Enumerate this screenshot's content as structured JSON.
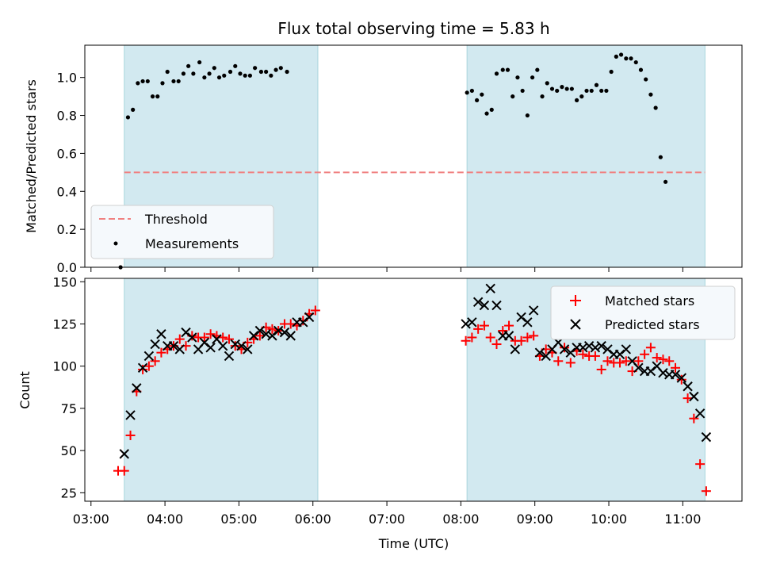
{
  "chart_data": [
    {
      "type": "scatter",
      "title": "Flux total observing time = 5.83 h",
      "xlabel": "",
      "ylabel": "Matched/Predicted stars",
      "ylim": [
        0,
        1.17
      ],
      "xlim": [
        "02:55",
        "11:48"
      ],
      "yticks": [
        "0.0",
        "0.2",
        "0.4",
        "0.6",
        "0.8",
        "1.0"
      ],
      "observing_windows": [
        [
          "03:27",
          "06:04"
        ],
        [
          "08:05",
          "11:18"
        ]
      ],
      "threshold": {
        "name": "Threshold",
        "y": 0.5,
        "color": "#f08080",
        "from": "03:27",
        "to": "11:18"
      },
      "legend_location": "lower-left",
      "series": [
        {
          "name": "Measurements",
          "color": "#000000",
          "points": [
            [
              "03:24",
              0.0
            ],
            [
              "03:30",
              0.79
            ],
            [
              "03:34",
              0.83
            ],
            [
              "03:38",
              0.97
            ],
            [
              "03:42",
              0.98
            ],
            [
              "03:46",
              0.98
            ],
            [
              "03:50",
              0.9
            ],
            [
              "03:54",
              0.9
            ],
            [
              "03:58",
              0.97
            ],
            [
              "04:02",
              1.03
            ],
            [
              "04:07",
              0.98
            ],
            [
              "04:11",
              0.98
            ],
            [
              "04:15",
              1.02
            ],
            [
              "04:19",
              1.06
            ],
            [
              "04:23",
              1.02
            ],
            [
              "04:28",
              1.08
            ],
            [
              "04:32",
              1.0
            ],
            [
              "04:36",
              1.02
            ],
            [
              "04:40",
              1.05
            ],
            [
              "04:44",
              1.0
            ],
            [
              "04:48",
              1.01
            ],
            [
              "04:53",
              1.03
            ],
            [
              "04:57",
              1.06
            ],
            [
              "05:01",
              1.02
            ],
            [
              "05:05",
              1.01
            ],
            [
              "05:09",
              1.01
            ],
            [
              "05:13",
              1.05
            ],
            [
              "05:18",
              1.03
            ],
            [
              "05:22",
              1.03
            ],
            [
              "05:26",
              1.01
            ],
            [
              "05:30",
              1.04
            ],
            [
              "05:34",
              1.05
            ],
            [
              "05:39",
              1.03
            ],
            [
              "08:05",
              0.92
            ],
            [
              "08:09",
              0.93
            ],
            [
              "08:13",
              0.88
            ],
            [
              "08:17",
              0.91
            ],
            [
              "08:21",
              0.81
            ],
            [
              "08:25",
              0.83
            ],
            [
              "08:29",
              1.02
            ],
            [
              "08:34",
              1.04
            ],
            [
              "08:38",
              1.04
            ],
            [
              "08:42",
              0.9
            ],
            [
              "08:46",
              1.0
            ],
            [
              "08:50",
              0.93
            ],
            [
              "08:54",
              0.8
            ],
            [
              "08:58",
              1.0
            ],
            [
              "09:02",
              1.04
            ],
            [
              "09:06",
              0.9
            ],
            [
              "09:10",
              0.97
            ],
            [
              "09:14",
              0.94
            ],
            [
              "09:18",
              0.93
            ],
            [
              "09:22",
              0.95
            ],
            [
              "09:26",
              0.94
            ],
            [
              "09:30",
              0.94
            ],
            [
              "09:34",
              0.88
            ],
            [
              "09:38",
              0.9
            ],
            [
              "09:42",
              0.93
            ],
            [
              "09:46",
              0.93
            ],
            [
              "09:50",
              0.96
            ],
            [
              "09:54",
              0.93
            ],
            [
              "09:58",
              0.93
            ],
            [
              "10:02",
              1.03
            ],
            [
              "10:06",
              1.11
            ],
            [
              "10:10",
              1.12
            ],
            [
              "10:14",
              1.1
            ],
            [
              "10:18",
              1.1
            ],
            [
              "10:22",
              1.08
            ],
            [
              "10:26",
              1.04
            ],
            [
              "10:30",
              0.99
            ],
            [
              "10:34",
              0.91
            ],
            [
              "10:38",
              0.84
            ],
            [
              "10:42",
              0.58
            ],
            [
              "10:46",
              0.45
            ]
          ]
        }
      ]
    },
    {
      "type": "scatter",
      "title": "",
      "xlabel": "Time (UTC)",
      "ylabel": "Count",
      "ylim": [
        20,
        152
      ],
      "xlim": [
        "02:55",
        "11:48"
      ],
      "yticks": [
        "25",
        "50",
        "75",
        "100",
        "125",
        "150"
      ],
      "xticks": [
        "03:00",
        "04:00",
        "05:00",
        "06:00",
        "07:00",
        "08:00",
        "09:00",
        "10:00",
        "11:00"
      ],
      "observing_windows": [
        [
          "03:27",
          "06:04"
        ],
        [
          "08:05",
          "11:18"
        ]
      ],
      "legend_location": "upper-right",
      "series": [
        {
          "name": "Matched stars",
          "marker": "+",
          "color": "#ff0000",
          "points": [
            [
              "03:22",
              38
            ],
            [
              "03:27",
              38
            ],
            [
              "03:32",
              59
            ],
            [
              "03:37",
              85
            ],
            [
              "03:42",
              98
            ],
            [
              "03:47",
              100
            ],
            [
              "03:52",
              103
            ],
            [
              "03:57",
              108
            ],
            [
              "04:02",
              110
            ],
            [
              "04:07",
              112
            ],
            [
              "04:12",
              116
            ],
            [
              "04:17",
              112
            ],
            [
              "04:22",
              118
            ],
            [
              "04:27",
              117
            ],
            [
              "04:32",
              117
            ],
            [
              "04:37",
              119
            ],
            [
              "04:42",
              118
            ],
            [
              "04:47",
              117
            ],
            [
              "04:52",
              116
            ],
            [
              "04:57",
              112
            ],
            [
              "05:02",
              110
            ],
            [
              "05:07",
              114
            ],
            [
              "05:12",
              116
            ],
            [
              "05:17",
              118
            ],
            [
              "05:22",
              123
            ],
            [
              "05:27",
              122
            ],
            [
              "05:32",
              121
            ],
            [
              "05:37",
              125
            ],
            [
              "05:42",
              125
            ],
            [
              "05:47",
              124
            ],
            [
              "05:52",
              127
            ],
            [
              "05:57",
              131
            ],
            [
              "06:02",
              133
            ],
            [
              "08:04",
              115
            ],
            [
              "08:09",
              117
            ],
            [
              "08:14",
              122
            ],
            [
              "08:19",
              124
            ],
            [
              "08:24",
              117
            ],
            [
              "08:29",
              113
            ],
            [
              "08:34",
              121
            ],
            [
              "08:39",
              124
            ],
            [
              "08:44",
              115
            ],
            [
              "08:49",
              115
            ],
            [
              "08:54",
              117
            ],
            [
              "08:59",
              118
            ],
            [
              "09:04",
              106
            ],
            [
              "09:09",
              110
            ],
            [
              "09:14",
              108
            ],
            [
              "09:19",
              103
            ],
            [
              "09:24",
              111
            ],
            [
              "09:29",
              102
            ],
            [
              "09:34",
              109
            ],
            [
              "09:39",
              107
            ],
            [
              "09:44",
              106
            ],
            [
              "09:49",
              106
            ],
            [
              "09:54",
              98
            ],
            [
              "09:59",
              103
            ],
            [
              "10:04",
              102
            ],
            [
              "10:09",
              102
            ],
            [
              "10:14",
              103
            ],
            [
              "10:19",
              97
            ],
            [
              "10:24",
              103
            ],
            [
              "10:29",
              107
            ],
            [
              "10:34",
              111
            ],
            [
              "10:39",
              105
            ],
            [
              "10:44",
              104
            ],
            [
              "10:49",
              103
            ],
            [
              "10:54",
              99
            ],
            [
              "10:59",
              92
            ],
            [
              "11:04",
              81
            ],
            [
              "11:09",
              69
            ],
            [
              "11:14",
              42
            ],
            [
              "11:19",
              26
            ]
          ]
        },
        {
          "name": "Predicted stars",
          "marker": "x",
          "color": "#000000",
          "points": [
            [
              "03:27",
              48
            ],
            [
              "03:32",
              71
            ],
            [
              "03:37",
              87
            ],
            [
              "03:42",
              99
            ],
            [
              "03:47",
              106
            ],
            [
              "03:52",
              113
            ],
            [
              "03:57",
              119
            ],
            [
              "04:02",
              112
            ],
            [
              "04:07",
              112
            ],
            [
              "04:12",
              110
            ],
            [
              "04:17",
              120
            ],
            [
              "04:22",
              117
            ],
            [
              "04:27",
              110
            ],
            [
              "04:32",
              114
            ],
            [
              "04:37",
              111
            ],
            [
              "04:42",
              116
            ],
            [
              "04:47",
              112
            ],
            [
              "04:52",
              106
            ],
            [
              "04:57",
              113
            ],
            [
              "05:02",
              112
            ],
            [
              "05:07",
              110
            ],
            [
              "05:12",
              118
            ],
            [
              "05:17",
              121
            ],
            [
              "05:22",
              119
            ],
            [
              "05:27",
              118
            ],
            [
              "05:32",
              121
            ],
            [
              "05:37",
              120
            ],
            [
              "05:42",
              118
            ],
            [
              "05:47",
              126
            ],
            [
              "05:52",
              126
            ],
            [
              "05:57",
              129
            ],
            [
              "08:04",
              125
            ],
            [
              "08:09",
              126
            ],
            [
              "08:14",
              138
            ],
            [
              "08:19",
              136
            ],
            [
              "08:24",
              146
            ],
            [
              "08:29",
              136
            ],
            [
              "08:34",
              118
            ],
            [
              "08:39",
              118
            ],
            [
              "08:44",
              110
            ],
            [
              "08:49",
              129
            ],
            [
              "08:54",
              126
            ],
            [
              "08:59",
              133
            ],
            [
              "09:04",
              108
            ],
            [
              "09:09",
              106
            ],
            [
              "09:14",
              110
            ],
            [
              "09:19",
              114
            ],
            [
              "09:24",
              110
            ],
            [
              "09:29",
              108
            ],
            [
              "09:34",
              111
            ],
            [
              "09:39",
              111
            ],
            [
              "09:44",
              112
            ],
            [
              "09:49",
              111
            ],
            [
              "09:54",
              112
            ],
            [
              "09:59",
              110
            ],
            [
              "10:04",
              107
            ],
            [
              "10:09",
              107
            ],
            [
              "10:14",
              110
            ],
            [
              "10:19",
              103
            ],
            [
              "10:24",
              99
            ],
            [
              "10:29",
              97
            ],
            [
              "10:34",
              97
            ],
            [
              "10:39",
              100
            ],
            [
              "10:44",
              96
            ],
            [
              "10:49",
              95
            ],
            [
              "10:54",
              95
            ],
            [
              "10:59",
              93
            ],
            [
              "11:04",
              88
            ],
            [
              "11:09",
              82
            ],
            [
              "11:14",
              72
            ],
            [
              "11:19",
              58
            ]
          ]
        }
      ]
    }
  ],
  "colors": {
    "observing_window_fill": "#d2e9f0",
    "observing_window_edge": "#a9d6dc",
    "legend_bg": "#f5f9fc"
  }
}
